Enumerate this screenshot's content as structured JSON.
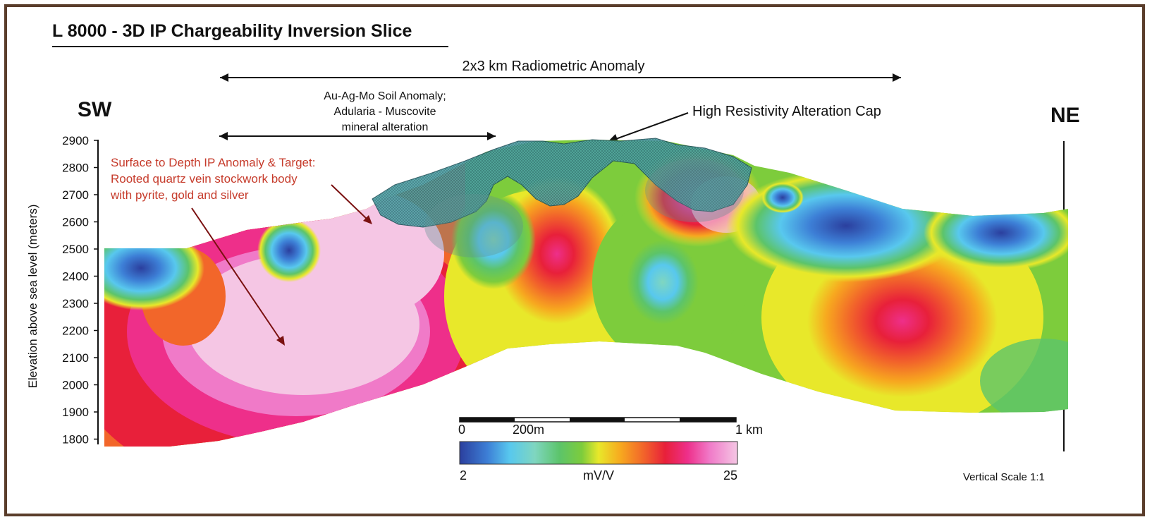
{
  "title": "L 8000 - 3D IP Chargeability Inversion Slice",
  "orientation": {
    "left": "SW",
    "right": "NE"
  },
  "annotations": {
    "radiometric": "2x3 km Radiometric Anomaly",
    "soil_line1": "Au-Ag-Mo Soil Anomaly;",
    "soil_line2": "Adularia - Muscovite",
    "soil_line3": "mineral alteration",
    "cap": "High Resistivity Alteration Cap",
    "target_line1": "Surface to Depth IP Anomaly & Target:",
    "target_line2": "Rooted quartz vein stockwork body",
    "target_line3": "with pyrite, gold and silver"
  },
  "elevation_axis": {
    "label": "Elevation above sea level (meters)",
    "ticks": [
      "2900",
      "2800",
      "2700",
      "2600",
      "2500",
      "2400",
      "2300",
      "2200",
      "2100",
      "2000",
      "1900",
      "1800"
    ]
  },
  "scale_bar": {
    "start": "0",
    "mid": "200m",
    "end": "1 km"
  },
  "colorbar": {
    "min": "2",
    "unit": "mV/V",
    "max": "25",
    "colors": [
      "#2b3f9e",
      "#3d7fd6",
      "#58c8ee",
      "#7fd6c0",
      "#5cc46a",
      "#7dcc3c",
      "#e8e82a",
      "#f7a81f",
      "#f2662a",
      "#e8203a",
      "#ee2f8a",
      "#f07ac8",
      "#f5c6e4"
    ]
  },
  "vertical_scale": "Vertical Scale 1:1"
}
